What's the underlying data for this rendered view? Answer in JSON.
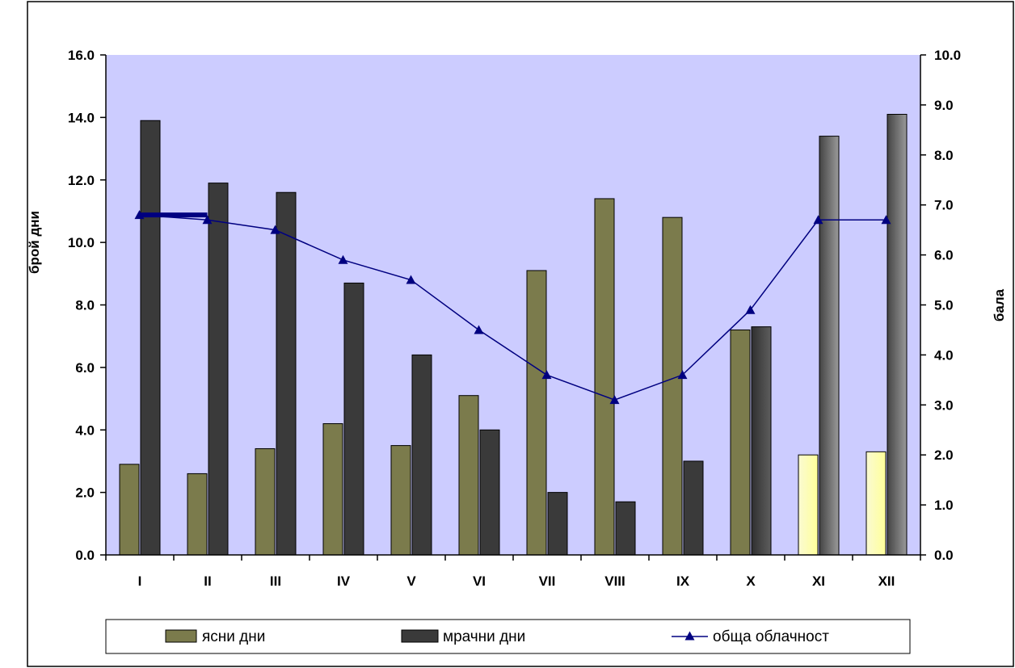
{
  "chart_data": {
    "type": "bar",
    "categories": [
      "I",
      "II",
      "III",
      "IV",
      "V",
      "VI",
      "VII",
      "VIII",
      "IX",
      "X",
      "XI",
      "XII"
    ],
    "series": [
      {
        "name": "ясни дни",
        "axis": "left",
        "type": "bar",
        "color": "#7b7b4c",
        "values": [
          2.9,
          2.6,
          3.4,
          4.2,
          3.5,
          5.1,
          9.1,
          11.4,
          10.8,
          7.2,
          3.2,
          3.3
        ]
      },
      {
        "name": "мрачни дни",
        "axis": "left",
        "type": "bar",
        "color": "#3a3a3a",
        "values": [
          13.9,
          11.9,
          11.6,
          8.7,
          6.4,
          4.0,
          2.0,
          1.7,
          3.0,
          7.3,
          13.4,
          14.1
        ]
      },
      {
        "name": "обща облачност",
        "axis": "right",
        "type": "line",
        "color": "#000080",
        "values": [
          6.8,
          6.7,
          6.5,
          5.9,
          5.5,
          4.5,
          3.6,
          3.1,
          3.6,
          4.9,
          6.7,
          6.7
        ]
      }
    ],
    "ylabel": "брой дни",
    "y2label": "бала",
    "ylim": [
      0,
      16
    ],
    "y2lim": [
      0,
      10
    ],
    "yticks": [
      "0.0",
      "2.0",
      "4.0",
      "6.0",
      "8.0",
      "10.0",
      "12.0",
      "14.0",
      "16.0"
    ],
    "y2ticks": [
      "0.0",
      "1.0",
      "2.0",
      "3.0",
      "4.0",
      "5.0",
      "6.0",
      "7.0",
      "8.0",
      "9.0",
      "10.0"
    ],
    "legend_position": "bottom",
    "grid": false,
    "plot_background": "#ccccff"
  }
}
